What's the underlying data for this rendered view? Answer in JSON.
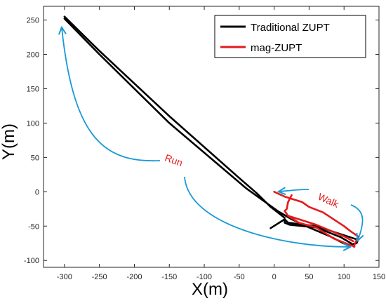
{
  "chart_data": {
    "type": "line",
    "title": "",
    "xlabel": "X(m)",
    "ylabel": "Y(m)",
    "xlim": [
      -330,
      150
    ],
    "ylim": [
      -110,
      270
    ],
    "xticks": [
      -300,
      -250,
      -200,
      -150,
      -100,
      -50,
      0,
      50,
      100,
      150
    ],
    "yticks": [
      250,
      200,
      150,
      100,
      50,
      0,
      -50,
      -100
    ],
    "grid": false,
    "legend_position": "top-right",
    "colors": {
      "traditional": "#000000",
      "mag": "#e31a1c",
      "annotation": "#1a9ad6",
      "annotation_text": "#e31a1c"
    },
    "series": [
      {
        "name": "Traditional ZUPT",
        "color": "#000000",
        "segments": [
          [
            [
              -5,
              -53
            ],
            [
              15,
              -40
            ],
            [
              20,
              -45
            ],
            [
              60,
              -50
            ],
            [
              120,
              -70
            ],
            [
              118,
              -75
            ],
            [
              105,
              -78
            ],
            [
              80,
              -65
            ],
            [
              50,
              -52
            ],
            [
              25,
              -40
            ],
            [
              5,
              -28
            ],
            [
              -40,
              5
            ],
            [
              -150,
              100
            ],
            [
              -250,
              200
            ],
            [
              -300,
              252
            ]
          ],
          [
            [
              -300,
              255
            ],
            [
              -250,
              205
            ],
            [
              -150,
              110
            ],
            [
              -50,
              20
            ],
            [
              -25,
              -2
            ],
            [
              -5,
              -22
            ],
            [
              15,
              -38
            ]
          ],
          [
            [
              15,
              -40
            ],
            [
              15,
              -45
            ],
            [
              22,
              -48
            ],
            [
              60,
              -52
            ],
            [
              95,
              -66
            ],
            [
              110,
              -75
            ]
          ]
        ]
      },
      {
        "name": "mag-ZUPT",
        "color": "#e31a1c",
        "segments": [
          [
            [
              0,
              0
            ],
            [
              15,
              -7
            ],
            [
              40,
              -15
            ],
            [
              50,
              -22
            ],
            [
              70,
              -30
            ],
            [
              100,
              -50
            ],
            [
              110,
              -58
            ],
            [
              120,
              -65
            ],
            [
              118,
              -70
            ],
            [
              114,
              -80
            ]
          ],
          [
            [
              115,
              -80
            ],
            [
              85,
              -68
            ],
            [
              60,
              -52
            ],
            [
              35,
              -45
            ],
            [
              20,
              -35
            ],
            [
              15,
              -28
            ],
            [
              18,
              -25
            ],
            [
              20,
              -15
            ],
            [
              25,
              -5
            ]
          ],
          [
            [
              20,
              -35
            ],
            [
              60,
              -48
            ],
            [
              100,
              -65
            ],
            [
              113,
              -72
            ]
          ]
        ]
      }
    ],
    "annotations": [
      {
        "text": "Run",
        "color": "#e31a1c"
      },
      {
        "text": "Walk",
        "color": "#e31a1c"
      }
    ]
  }
}
